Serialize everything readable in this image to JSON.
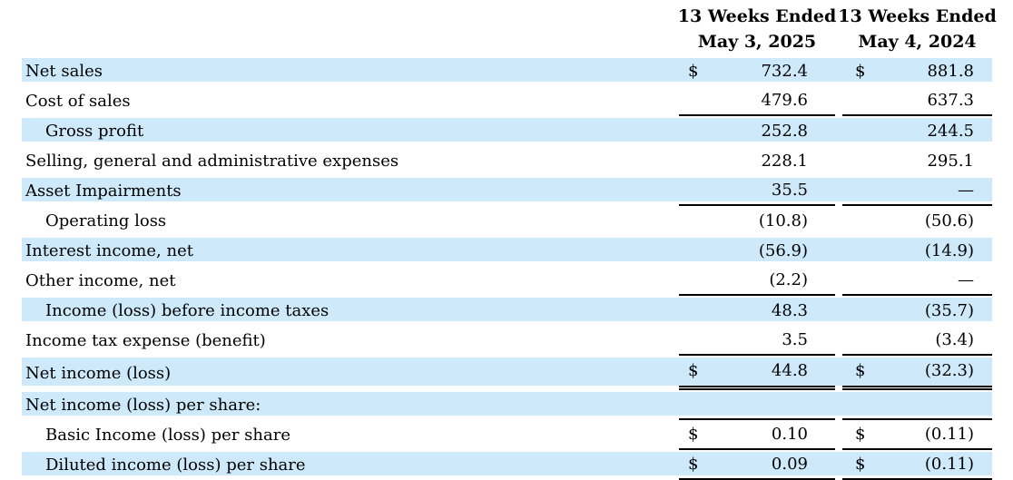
{
  "table": {
    "dollar_sign": "$",
    "colors": {
      "row_highlight": "#cde9fa",
      "rule": "#000000",
      "text": "#000000"
    },
    "col_headers": [
      {
        "line1": "13 Weeks Ended",
        "line2": "May 3, 2025"
      },
      {
        "line1": "13 Weeks Ended",
        "line2": "May 4, 2024"
      }
    ],
    "rows": [
      {
        "label": "Net sales",
        "indent": false,
        "highlight": true,
        "dollar": true,
        "v1": "732.4",
        "v2": "881.8",
        "rule": "none"
      },
      {
        "label": "Cost of sales",
        "indent": false,
        "highlight": false,
        "dollar": false,
        "v1": "479.6",
        "v2": "637.3",
        "rule": "single"
      },
      {
        "label": "Gross profit",
        "indent": true,
        "highlight": true,
        "dollar": false,
        "v1": "252.8",
        "v2": "244.5",
        "rule": "none"
      },
      {
        "label": "Selling, general and administrative expenses",
        "indent": false,
        "highlight": false,
        "dollar": false,
        "v1": "228.1",
        "v2": "295.1",
        "rule": "none"
      },
      {
        "label": "Asset Impairments",
        "indent": false,
        "highlight": true,
        "dollar": false,
        "v1": "35.5",
        "v2": "—",
        "rule": "single"
      },
      {
        "label": "Operating loss",
        "indent": true,
        "highlight": false,
        "dollar": false,
        "v1": "(10.8)",
        "v2": "(50.6)",
        "rule": "none"
      },
      {
        "label": "Interest income, net",
        "indent": false,
        "highlight": true,
        "dollar": false,
        "v1": "(56.9)",
        "v2": "(14.9)",
        "rule": "none"
      },
      {
        "label": "Other income, net",
        "indent": false,
        "highlight": false,
        "dollar": false,
        "v1": "(2.2)",
        "v2": "—",
        "rule": "single"
      },
      {
        "label": "Income (loss) before income taxes",
        "indent": true,
        "highlight": true,
        "dollar": false,
        "v1": "48.3",
        "v2": "(35.7)",
        "rule": "none"
      },
      {
        "label": "Income tax expense (benefit)",
        "indent": false,
        "highlight": false,
        "dollar": false,
        "v1": "3.5",
        "v2": "(3.4)",
        "rule": "single"
      },
      {
        "label": "Net income (loss)",
        "indent": false,
        "highlight": true,
        "dollar": true,
        "v1": "44.8",
        "v2": "(32.3)",
        "rule": "double"
      },
      {
        "label": "Net income (loss) per share:",
        "indent": false,
        "highlight": true,
        "dollar": false,
        "v1": "",
        "v2": "",
        "rule": "single"
      },
      {
        "label": "Basic Income (loss) per share",
        "indent": true,
        "highlight": false,
        "dollar": true,
        "v1": "0.10",
        "v2": "(0.11)",
        "rule": "single"
      },
      {
        "label": "Diluted income (loss) per share",
        "indent": true,
        "highlight": true,
        "dollar": true,
        "v1": "0.09",
        "v2": "(0.11)",
        "rule": "single"
      }
    ]
  }
}
